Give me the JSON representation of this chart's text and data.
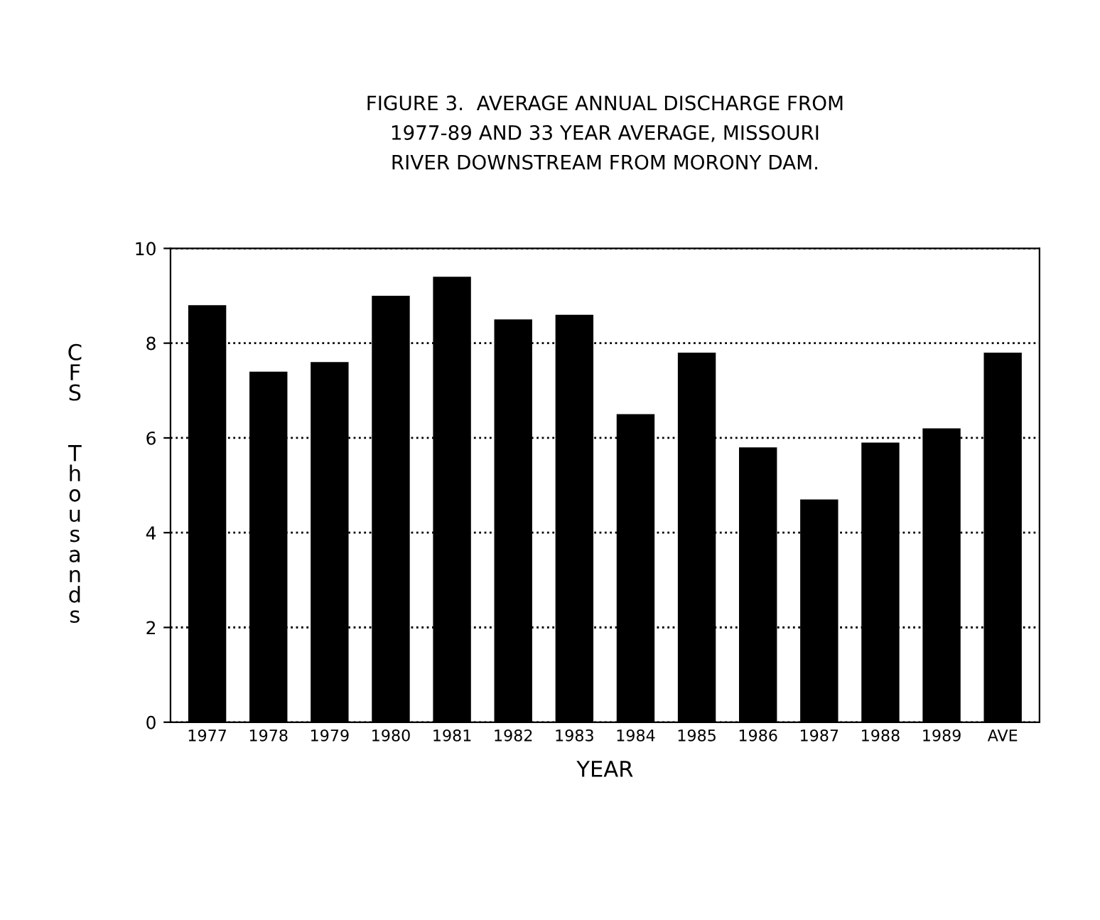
{
  "chart_data": {
    "type": "bar",
    "title": "FIGURE 3.  AVERAGE ANNUAL DISCHARGE FROM\n1977-89 AND 33 YEAR AVERAGE, MISSOURI\nRIVER DOWNSTREAM FROM MORONY DAM.",
    "xlabel": "YEAR",
    "ylabel": "CFS Thousands",
    "categories": [
      "1977",
      "1978",
      "1979",
      "1980",
      "1981",
      "1982",
      "1983",
      "1984",
      "1985",
      "1986",
      "1987",
      "1988",
      "1989",
      "AVE"
    ],
    "values": [
      8.8,
      7.4,
      7.6,
      9.0,
      9.4,
      8.5,
      8.6,
      6.5,
      7.8,
      5.8,
      4.7,
      5.9,
      6.2,
      7.8
    ],
    "color": "#000000",
    "ylim": [
      0,
      10
    ],
    "yticks": [
      0,
      2,
      4,
      6,
      8,
      10
    ],
    "grid": "y",
    "line_style": "dotted"
  }
}
